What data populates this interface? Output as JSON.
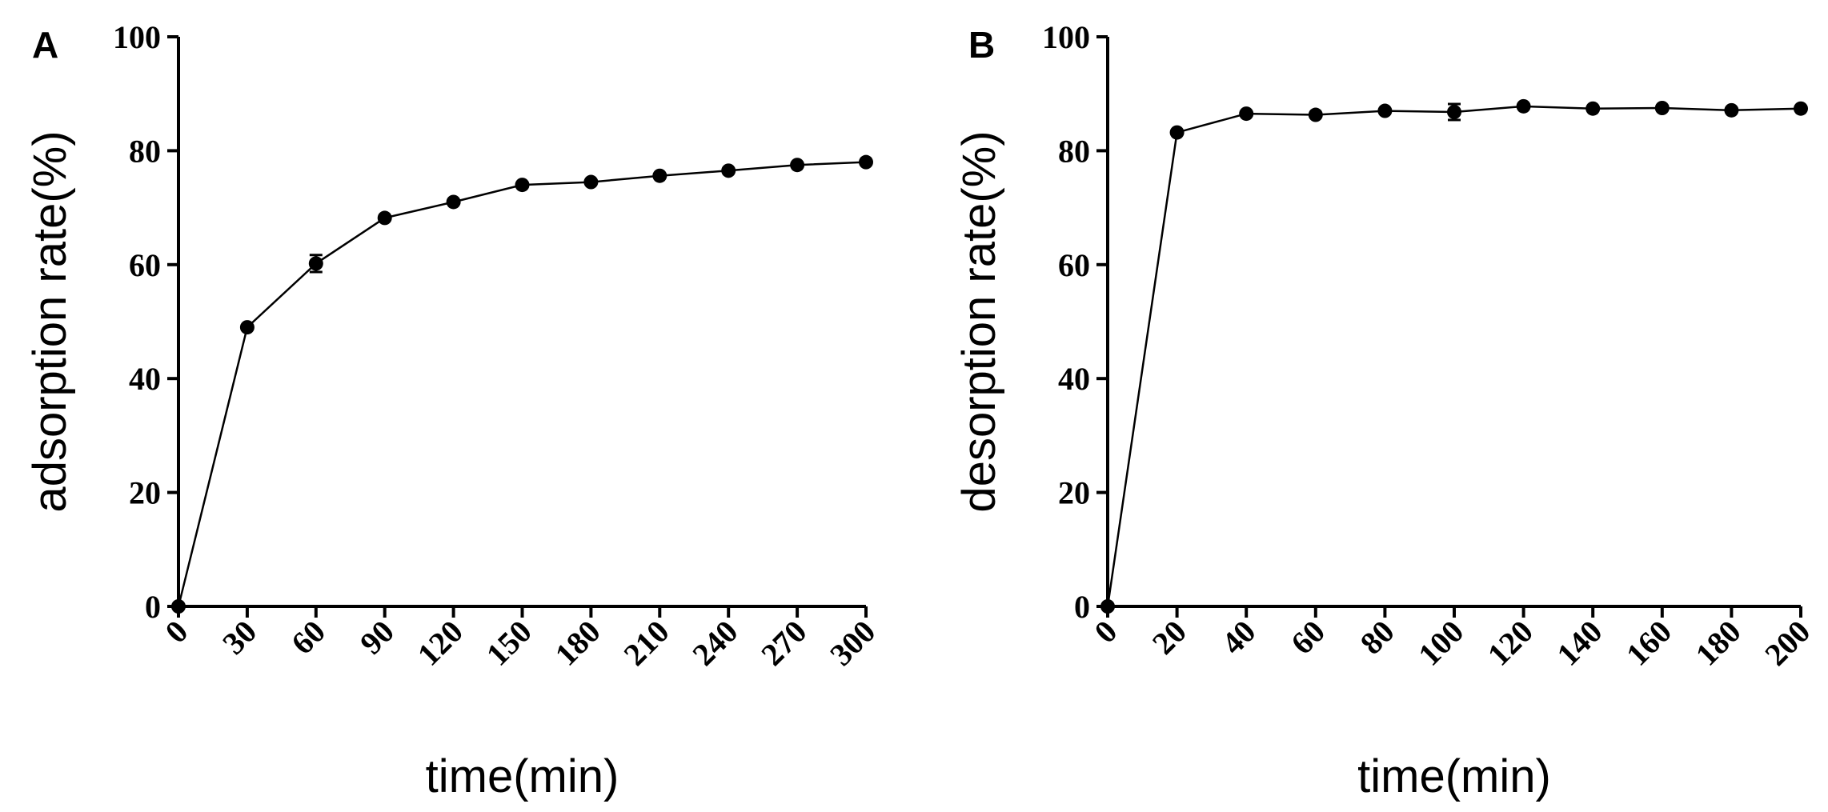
{
  "chart_data": [
    {
      "type": "line",
      "panel_label": "A",
      "xlabel": "time(min)",
      "ylabel": "adsorption rate(%)",
      "xlim": [
        0,
        300
      ],
      "ylim": [
        0,
        100
      ],
      "xticks": [
        "0",
        "30",
        "60",
        "90",
        "120",
        "150",
        "180",
        "210",
        "240",
        "270",
        "300"
      ],
      "yticks": [
        "0",
        "20",
        "40",
        "60",
        "80",
        "100"
      ],
      "grid": false,
      "series": [
        {
          "x": [
            0,
            30,
            60,
            90,
            120,
            150,
            180,
            210,
            240,
            270,
            300
          ],
          "y": [
            0,
            49,
            60.2,
            68.2,
            71,
            74,
            74.5,
            75.6,
            76.5,
            77.5,
            78
          ],
          "error": [
            0,
            0,
            1.5,
            0,
            0,
            0,
            0,
            0,
            0,
            0,
            0
          ]
        }
      ]
    },
    {
      "type": "line",
      "panel_label": "B",
      "xlabel": "time(min)",
      "ylabel": "desorption rate(%)",
      "xlim": [
        0,
        200
      ],
      "ylim": [
        0,
        100
      ],
      "xticks": [
        "0",
        "20",
        "40",
        "60",
        "80",
        "100",
        "120",
        "140",
        "160",
        "180",
        "200"
      ],
      "yticks": [
        "0",
        "20",
        "40",
        "60",
        "80",
        "100"
      ],
      "grid": false,
      "series": [
        {
          "x": [
            0,
            20,
            40,
            60,
            80,
            100,
            120,
            140,
            160,
            180,
            200
          ],
          "y": [
            0,
            83.2,
            86.5,
            86.3,
            87,
            86.8,
            87.8,
            87.4,
            87.5,
            87.1,
            87.4
          ],
          "error": [
            0,
            0,
            0,
            0,
            0,
            1.4,
            0,
            0,
            0,
            0,
            0
          ]
        }
      ]
    }
  ]
}
